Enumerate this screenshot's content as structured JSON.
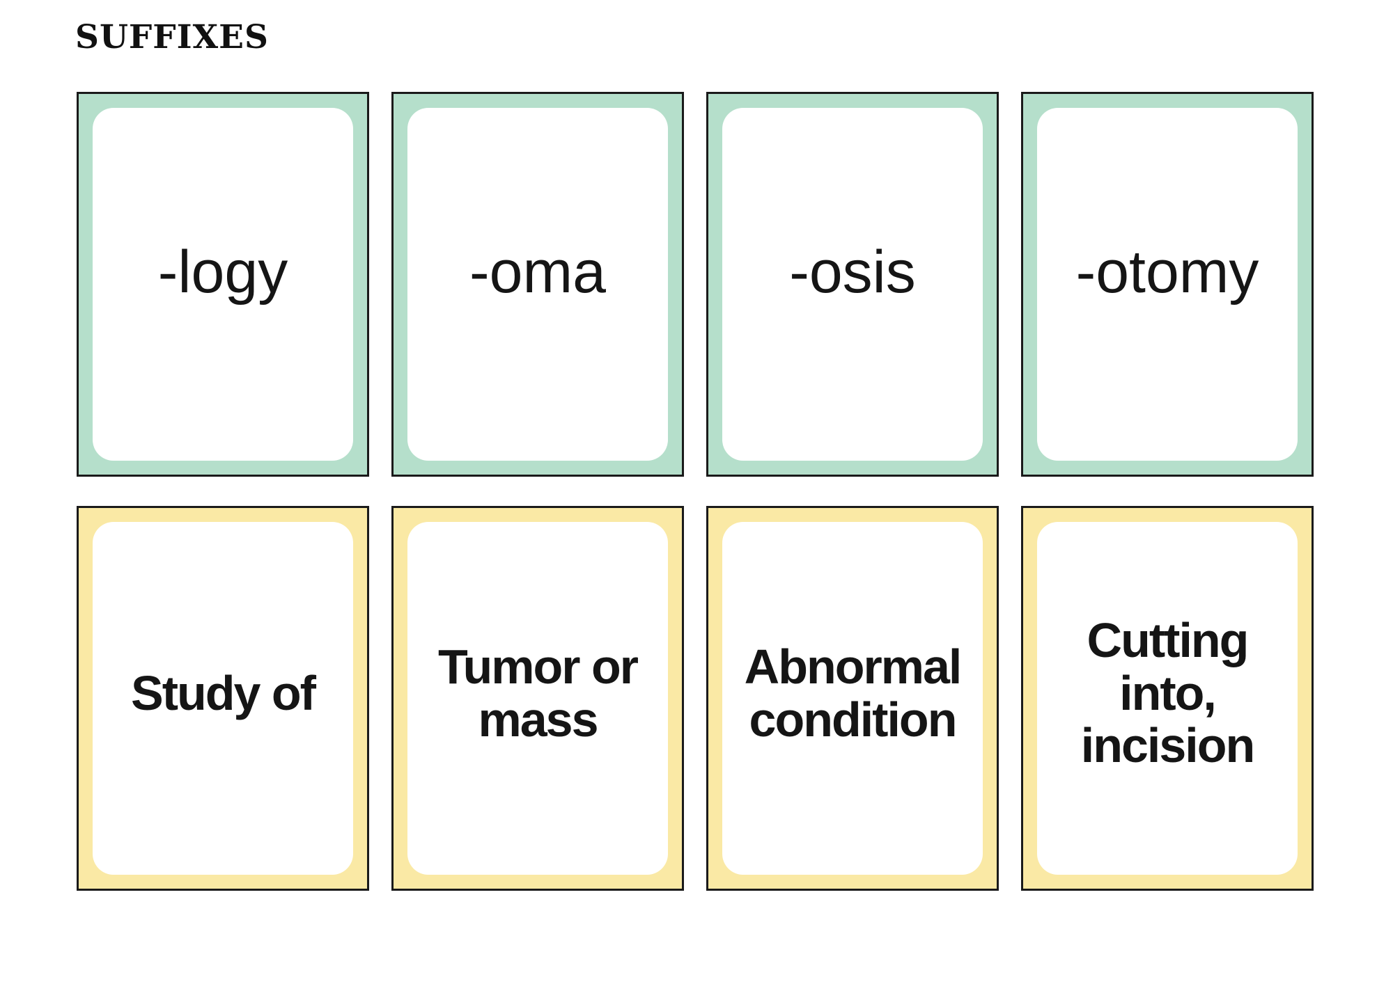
{
  "page": {
    "title": "SUFFIXES"
  },
  "colors": {
    "front_frame": "#b5dfcb",
    "back_frame": "#fae9a5",
    "card_outline": "#1a1a1a",
    "text": "#151515",
    "background": "#ffffff"
  },
  "cards": [
    {
      "suffix": "-logy",
      "meaning": "Study of"
    },
    {
      "suffix": "-oma",
      "meaning": "Tumor or\nmass"
    },
    {
      "suffix": "-osis",
      "meaning": "Abnormal\ncondition"
    },
    {
      "suffix": "-otomy",
      "meaning": "Cutting\ninto,\nincision"
    }
  ]
}
